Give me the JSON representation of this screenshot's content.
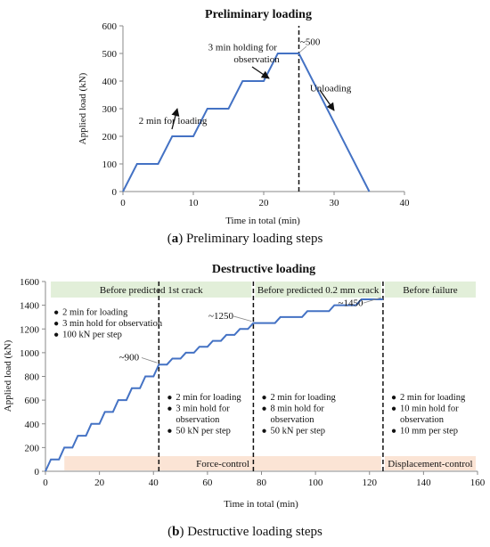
{
  "charts": {
    "a": {
      "caption_letter": "a",
      "caption_text": " Preliminary loading steps"
    },
    "b": {
      "caption_letter": "b",
      "caption_text": " Destructive loading steps"
    }
  },
  "chart_data": [
    {
      "type": "line",
      "title": "Preliminary loading",
      "xlabel": "Time in total (min)",
      "ylabel": "Applied load (kN)",
      "xlim": [
        0,
        40
      ],
      "ylim": [
        0,
        600
      ],
      "xticks": [
        0,
        10,
        20,
        30,
        40
      ],
      "yticks": [
        0,
        100,
        200,
        300,
        400,
        500,
        600
      ],
      "grid": false,
      "line_color": "#4472C4",
      "series": [
        {
          "x": [
            0,
            2,
            5,
            7,
            10,
            12,
            15,
            17,
            20,
            22,
            25,
            35
          ],
          "y": [
            0,
            100,
            100,
            200,
            200,
            300,
            300,
            400,
            400,
            500,
            500,
            0
          ]
        }
      ],
      "vlines": [
        25
      ],
      "annotations": [
        {
          "text": "2 min for loading",
          "x": 7.1,
          "y": 245
        },
        {
          "text": "3 min holding for",
          "x": 17,
          "y": 512
        },
        {
          "text": "observation",
          "x": 19,
          "y": 468
        },
        {
          "text": "~500",
          "x": 26.6,
          "y": 530
        },
        {
          "text": "Unloading",
          "x": 29.5,
          "y": 363
        }
      ]
    },
    {
      "type": "line",
      "title": "Destructive loading",
      "xlabel": "Time in total (min)",
      "ylabel": "Applied load (kN)",
      "xlim": [
        0,
        160
      ],
      "ylim": [
        0,
        1600
      ],
      "xticks": [
        0,
        20,
        40,
        60,
        80,
        100,
        120,
        140,
        160
      ],
      "yticks": [
        0,
        200,
        400,
        600,
        800,
        1000,
        1200,
        1400,
        1600
      ],
      "grid": false,
      "line_color": "#4472C4",
      "series": [
        {
          "x": [
            0,
            2,
            5,
            7,
            10,
            12,
            15,
            17,
            20,
            22,
            25,
            27,
            30,
            32,
            35,
            37,
            40,
            42,
            45,
            47,
            50,
            52,
            55,
            57,
            60,
            62,
            65,
            67,
            70,
            72,
            75,
            77,
            85,
            87,
            95,
            97,
            105,
            107,
            115,
            117,
            125
          ],
          "y": [
            0,
            100,
            100,
            200,
            200,
            300,
            300,
            400,
            400,
            500,
            500,
            600,
            600,
            700,
            700,
            800,
            800,
            900,
            900,
            950,
            950,
            1000,
            1000,
            1050,
            1050,
            1100,
            1100,
            1150,
            1150,
            1200,
            1200,
            1250,
            1250,
            1300,
            1300,
            1350,
            1350,
            1400,
            1400,
            1450,
            1450
          ]
        }
      ],
      "vlines": [
        42,
        77,
        125
      ],
      "stage_bands": [
        {
          "label": "Before predicted 1st crack",
          "x_start": 2,
          "x_end": 77
        },
        {
          "label": "Before predicted 0.2 mm crack",
          "x_start": 77,
          "x_end": 125
        },
        {
          "label": "Before failure",
          "x_start": 125,
          "x_end": 160
        }
      ],
      "control_bands": [
        {
          "label": "Force-control",
          "x_start": 7,
          "x_end": 125
        },
        {
          "label": "Displacement-control",
          "x_start": 125,
          "x_end": 160
        }
      ],
      "bullet_groups": [
        {
          "x": 3,
          "y": 1320,
          "items": [
            "2 min for loading",
            "3 min hold for observation",
            "100 kN per step"
          ]
        },
        {
          "x": 45,
          "y": 600,
          "items": [
            "2 min for loading",
            "3 min hold for observation",
            "50 kN per step"
          ]
        },
        {
          "x": 80,
          "y": 600,
          "items": [
            "2 min for loading",
            "8 min hold for observation",
            "50 kN per step"
          ]
        },
        {
          "x": 128,
          "y": 600,
          "items": [
            "2 min for loading",
            "10 min hold for observation",
            "10 mm per step"
          ]
        }
      ],
      "annotations": [
        {
          "text": "~900",
          "x": 31,
          "y": 935,
          "point_x": 42,
          "point_y": 900
        },
        {
          "text": "~1250",
          "x": 65,
          "y": 1285,
          "point_x": 77,
          "point_y": 1250
        },
        {
          "text": "~1450",
          "x": 113,
          "y": 1395,
          "point_x": 125,
          "point_y": 1450
        }
      ]
    }
  ]
}
